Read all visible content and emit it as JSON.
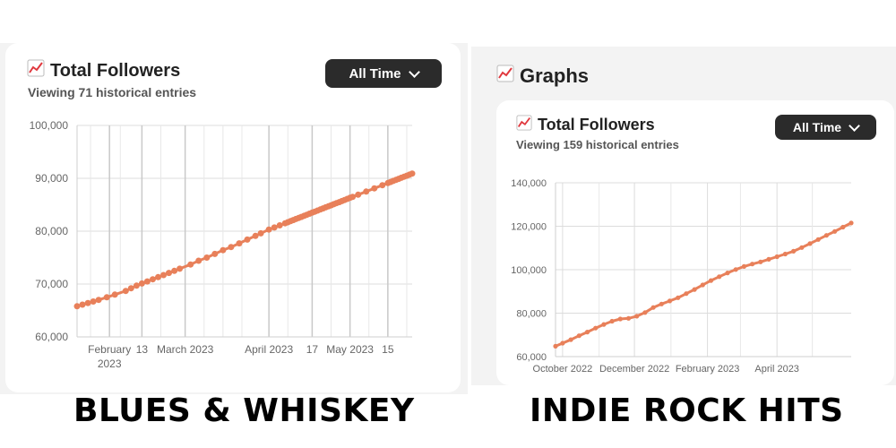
{
  "left": {
    "card_title": "Total Followers",
    "subtitle": "Viewing 71 historical entries",
    "dropdown_label": "All Time",
    "footer_name": "BLUES & WHISKEY",
    "chart_data": {
      "type": "line",
      "color": "#e8805a",
      "ylim": [
        60000,
        100000
      ],
      "yticks": [
        "100,000",
        "90,000",
        "80,000",
        "70,000",
        "60,000"
      ],
      "xticks": [
        {
          "label": "February",
          "label2": "2023"
        },
        {
          "label": "13",
          "label2": ""
        },
        {
          "label": "March 2023",
          "label2": ""
        },
        {
          "label": "April 2023",
          "label2": ""
        },
        {
          "label": "17",
          "label2": ""
        },
        {
          "label": "May 2023",
          "label2": ""
        },
        {
          "label": "15",
          "label2": ""
        }
      ],
      "x": [
        "2023-01-20",
        "2023-01-22",
        "2023-01-24",
        "2023-01-26",
        "2023-01-28",
        "2023-01-31",
        "2023-02-03",
        "2023-02-07",
        "2023-02-09",
        "2023-02-11",
        "2023-02-13",
        "2023-02-15",
        "2023-02-17",
        "2023-02-19",
        "2023-02-21",
        "2023-02-23",
        "2023-02-25",
        "2023-02-27",
        "2023-03-03",
        "2023-03-06",
        "2023-03-09",
        "2023-03-12",
        "2023-03-15",
        "2023-03-18",
        "2023-03-21",
        "2023-03-24",
        "2023-03-27",
        "2023-03-29",
        "2023-04-01",
        "2023-04-03",
        "2023-04-05",
        "2023-04-07",
        "2023-04-08",
        "2023-04-09",
        "2023-04-10",
        "2023-04-11",
        "2023-04-12",
        "2023-04-13",
        "2023-04-14",
        "2023-04-15",
        "2023-04-16",
        "2023-04-17",
        "2023-04-18",
        "2023-04-19",
        "2023-04-20",
        "2023-04-21",
        "2023-04-22",
        "2023-04-23",
        "2023-04-24",
        "2023-04-25",
        "2023-04-26",
        "2023-04-27",
        "2023-04-28",
        "2023-04-29",
        "2023-04-30",
        "2023-05-01",
        "2023-05-02",
        "2023-05-04",
        "2023-05-07",
        "2023-05-10",
        "2023-05-13",
        "2023-05-15",
        "2023-05-16",
        "2023-05-17",
        "2023-05-18",
        "2023-05-19",
        "2023-05-20",
        "2023-05-21",
        "2023-05-22",
        "2023-05-23",
        "2023-05-24"
      ],
      "y": [
        65800,
        66100,
        66400,
        66700,
        67000,
        67500,
        68000,
        68700,
        69200,
        69700,
        70100,
        70500,
        70900,
        71300,
        71700,
        72100,
        72500,
        72900,
        73700,
        74400,
        75000,
        75700,
        76400,
        77000,
        77700,
        78400,
        79100,
        79600,
        80300,
        80700,
        81100,
        81500,
        81700,
        81900,
        82100,
        82300,
        82500,
        82700,
        82900,
        83100,
        83300,
        83500,
        83700,
        83900,
        84100,
        84300,
        84500,
        84700,
        84900,
        85100,
        85300,
        85500,
        85700,
        85900,
        86100,
        86300,
        86500,
        86900,
        87500,
        88100,
        88700,
        89100,
        89300,
        89500,
        89700,
        89900,
        90100,
        90300,
        90500,
        90700,
        90900
      ]
    }
  },
  "right": {
    "section_title": "Graphs",
    "card_title": "Total Followers",
    "subtitle": "Viewing 159 historical entries",
    "dropdown_label": "All Time",
    "footer_name": "INDIE ROCK HITS",
    "chart_data": {
      "type": "line",
      "color": "#e8805a",
      "ylim": [
        60000,
        140000
      ],
      "yticks": [
        "140,000",
        "120,000",
        "100,000",
        "80,000",
        "60,000"
      ],
      "xticks": [
        "October 2022",
        "December 2022",
        "February 2023",
        "April 2023"
      ],
      "x": [
        "2022-09-25",
        "2022-10-01",
        "2022-10-08",
        "2022-10-15",
        "2022-10-22",
        "2022-10-29",
        "2022-11-05",
        "2022-11-12",
        "2022-11-19",
        "2022-11-26",
        "2022-12-03",
        "2022-12-10",
        "2022-12-17",
        "2022-12-24",
        "2022-12-31",
        "2023-01-07",
        "2023-01-14",
        "2023-01-21",
        "2023-01-28",
        "2023-02-04",
        "2023-02-11",
        "2023-02-18",
        "2023-02-25",
        "2023-03-04",
        "2023-03-11",
        "2023-03-18",
        "2023-03-25",
        "2023-04-01",
        "2023-04-08",
        "2023-04-15",
        "2023-04-22",
        "2023-04-29",
        "2023-05-06",
        "2023-05-13",
        "2023-05-20",
        "2023-05-27",
        "2023-06-03"
      ],
      "y": [
        64800,
        66200,
        67800,
        69600,
        71300,
        73100,
        74800,
        76300,
        77300,
        77600,
        78600,
        80300,
        82600,
        84200,
        85600,
        87100,
        89000,
        90900,
        93000,
        95000,
        96800,
        98500,
        100100,
        101500,
        102600,
        103600,
        104800,
        106000,
        107200,
        108500,
        110200,
        112000,
        113900,
        115800,
        117600,
        119600,
        121500
      ]
    }
  }
}
